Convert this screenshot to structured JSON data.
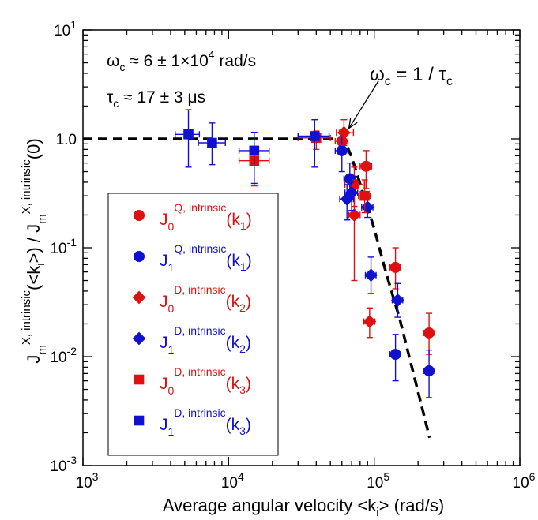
{
  "chart_data": {
    "type": "scatter",
    "title": "",
    "xlabel": {
      "main": "Average angular velocity  <k",
      "sub": "i",
      "tail": ">   (rad/s)"
    },
    "ylabel": {
      "part1": "J",
      "part1_sub": "m",
      "part1_sup": "X, intrinsic",
      "part2": "(<k",
      "part2_sub": "i",
      "part3": ">)  /  J",
      "part3_sub": "m",
      "part3_sup": "X, intrinsic",
      "part4": "(0)"
    },
    "xscale": "log",
    "yscale": "log",
    "xlim": [
      1000,
      1000000
    ],
    "ylim": [
      0.001,
      10
    ],
    "x_ticks": [
      {
        "value": 1000,
        "base": "10",
        "exp": "3"
      },
      {
        "value": 10000,
        "base": "10",
        "exp": "4"
      },
      {
        "value": 100000,
        "base": "10",
        "exp": "5"
      },
      {
        "value": 1000000,
        "base": "10",
        "exp": "6"
      }
    ],
    "y_ticks": [
      {
        "value": 0.001,
        "base": "10",
        "exp": "-3"
      },
      {
        "value": 0.01,
        "base": "10",
        "exp": "-2"
      },
      {
        "value": 0.1,
        "base": "10",
        "exp": "-1"
      },
      {
        "value": 1,
        "text": "1.0"
      },
      {
        "value": 10,
        "base": "10",
        "exp": "1"
      }
    ],
    "annotations": {
      "omega_c": {
        "sym": "ω",
        "sub": "c",
        "text": " ≈ 6 ± 1×10",
        "sup": "4",
        "unit": "  rad/s"
      },
      "tau_c": {
        "sym": "τ",
        "sub": "c",
        "text": " ≈ 17 ± 3 μs"
      },
      "relation": {
        "sym": "ω",
        "sub": "c",
        "text": " = 1 / τ",
        "sub2": "c"
      }
    },
    "fit_line": {
      "style": "dashed",
      "points": [
        [
          1000,
          1.0
        ],
        [
          62000,
          1.0
        ],
        [
          70000,
          0.68
        ],
        [
          100000,
          0.15
        ],
        [
          120000,
          0.06
        ],
        [
          150000,
          0.022
        ],
        [
          240000,
          0.0018
        ]
      ]
    },
    "arrow": {
      "from": [
        107000,
        3.4
      ],
      "to": [
        67000,
        1.25
      ]
    },
    "series": [
      {
        "name": "J",
        "name_sub": "0",
        "name_sup": "Q, intrinsic",
        "name_arg": "(k",
        "name_arg_sub": "1",
        "name_arg_close": ")",
        "color": "#e01010",
        "marker": "circle",
        "points": [
          {
            "x": 60000,
            "y": 0.95,
            "xerr": [
              54000,
              66000
            ],
            "yerr": [
              0.75,
              1.2
            ]
          },
          {
            "x": 73000,
            "y": 0.38,
            "xerr": [
              63000,
              84000
            ],
            "yerr": [
              0.24,
              0.55
            ]
          },
          {
            "x": 88000,
            "y": 0.56,
            "xerr": [
              80000,
              96000
            ],
            "yerr": [
              0.35,
              0.78
            ]
          },
          {
            "x": 140000,
            "y": 0.066,
            "xerr": [
              128000,
              152000
            ],
            "yerr": [
              0.042,
              0.1
            ]
          },
          {
            "x": 238000,
            "y": 0.0165,
            "xerr": [
              220000,
              256000
            ],
            "yerr": [
              0.0105,
              0.025
            ]
          }
        ]
      },
      {
        "name": "J",
        "name_sub": "1",
        "name_sup": "Q, intrinsic",
        "name_arg": "(k",
        "name_arg_sub": "1",
        "name_arg_close": ")",
        "color": "#1010d0",
        "marker": "circle",
        "points": [
          {
            "x": 60000,
            "y": 0.78,
            "xerr": [
              54000,
              66000
            ],
            "yerr": [
              0.5,
              1.05
            ]
          },
          {
            "x": 68000,
            "y": 0.43,
            "xerr": [
              62000,
              74000
            ],
            "yerr": [
              0.28,
              0.6
            ]
          },
          {
            "x": 140000,
            "y": 0.0105,
            "xerr": [
              128000,
              152000
            ],
            "yerr": [
              0.006,
              0.016
            ]
          },
          {
            "x": 238000,
            "y": 0.0074,
            "xerr": [
              220000,
              256000
            ],
            "yerr": [
              0.0042,
              0.0115
            ]
          }
        ]
      },
      {
        "name": "J",
        "name_sub": "0",
        "name_sup": "D, intrinsic",
        "name_arg": "(k",
        "name_arg_sub": "2",
        "name_arg_close": ")",
        "color": "#e01010",
        "marker": "diamond",
        "points": [
          {
            "x": 62000,
            "y": 1.14,
            "xerr": [
              55000,
              72000
            ],
            "yerr": [
              0.87,
              1.5
            ]
          },
          {
            "x": 73000,
            "y": 0.2,
            "xerr": [
              67000,
              80000
            ],
            "yerr": [
              0.05,
              0.42
            ]
          },
          {
            "x": 93000,
            "y": 0.021,
            "xerr": [
              85000,
              101000
            ],
            "yerr": [
              0.015,
              0.028
            ]
          }
        ]
      },
      {
        "name": "J",
        "name_sub": "1",
        "name_sup": "D, intrinsic",
        "name_arg": "(k",
        "name_arg_sub": "2",
        "name_arg_close": ")",
        "color": "#1010d0",
        "marker": "diamond",
        "points": [
          {
            "x": 65000,
            "y": 0.28,
            "xerr": [
              58000,
              72000
            ],
            "yerr": [
              0.18,
              0.38
            ]
          },
          {
            "x": 70000,
            "y": 0.32,
            "xerr": [
              63000,
              77000
            ],
            "yerr": [
              0.22,
              0.43
            ]
          },
          {
            "x": 90000,
            "y": 0.235,
            "xerr": [
              82000,
              98000
            ],
            "yerr": [
              0.19,
              0.29
            ]
          },
          {
            "x": 95000,
            "y": 0.056,
            "xerr": [
              87000,
              103000
            ],
            "yerr": [
              0.038,
              0.082
            ]
          },
          {
            "x": 145000,
            "y": 0.033,
            "xerr": [
              133000,
              157000
            ],
            "yerr": [
              0.023,
              0.047
            ]
          }
        ]
      },
      {
        "name": "J",
        "name_sub": "0",
        "name_sup": "D, intrinsic",
        "name_arg": "(k",
        "name_arg_sub": "3",
        "name_arg_close": ")",
        "color": "#e01010",
        "marker": "square",
        "points": [
          {
            "x": 15000,
            "y": 0.63,
            "xerr": [
              11800,
              19000
            ],
            "yerr": [
              0.37,
              0.98
            ]
          },
          {
            "x": 40000,
            "y": 1.02,
            "xerr": [
              30000,
              50000
            ],
            "yerr": [
              0.8,
              1.18
            ]
          },
          {
            "x": 86000,
            "y": 0.3,
            "xerr": [
              78000,
              94000
            ],
            "yerr": [
              0.21,
              0.42
            ]
          }
        ]
      },
      {
        "name": "J",
        "name_sub": "1",
        "name_sup": "D, intrinsic",
        "name_arg": "(k",
        "name_arg_sub": "3",
        "name_arg_close": ")",
        "color": "#1010d0",
        "marker": "square",
        "points": [
          {
            "x": 5300,
            "y": 1.1,
            "xerr": [
              4300,
              6300
            ],
            "yerr": [
              0.55,
              1.85
            ]
          },
          {
            "x": 7700,
            "y": 0.92,
            "xerr": [
              6200,
              9500
            ],
            "yerr": [
              0.58,
              1.4
            ]
          },
          {
            "x": 15000,
            "y": 0.78,
            "xerr": [
              11800,
              19000
            ],
            "yerr": [
              0.39,
              1.15
            ]
          },
          {
            "x": 39000,
            "y": 1.06,
            "xerr": [
              30000,
              49000
            ],
            "yerr": [
              0.55,
              1.5
            ]
          }
        ]
      }
    ]
  }
}
